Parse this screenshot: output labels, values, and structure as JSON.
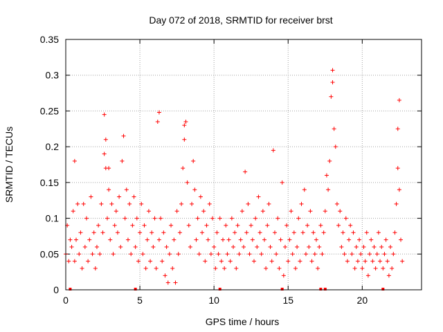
{
  "chart_data": {
    "type": "scatter",
    "title": "Day 072 of 2018, SRMTID for receiver brst",
    "xlabel": "GPS time / hours",
    "ylabel": "SRMTID / TECUs",
    "xlim": [
      0,
      24
    ],
    "ylim": [
      0,
      0.35
    ],
    "x_ticks": [
      0,
      5,
      10,
      15,
      20
    ],
    "x_tick_labels": [
      "0",
      "5",
      "10",
      "15",
      "20"
    ],
    "y_ticks": [
      0,
      0.05,
      0.1,
      0.15,
      0.2,
      0.25,
      0.3,
      0.35
    ],
    "y_tick_labels": [
      "0",
      "0.05",
      "0.1",
      "0.15",
      "0.2",
      "0.25",
      "0.3",
      "0.35"
    ],
    "grid": true,
    "marker": "+",
    "series": [
      {
        "name": "SRMTID",
        "color": "#ff0000",
        "points": [
          [
            0.0,
            0.05
          ],
          [
            0.1,
            0.09
          ],
          [
            0.2,
            0.04
          ],
          [
            0.3,
            0.07
          ],
          [
            0.4,
            0.06
          ],
          [
            0.5,
            0.11
          ],
          [
            0.6,
            0.04
          ],
          [
            0.6,
            0.18
          ],
          [
            0.7,
            0.07
          ],
          [
            0.8,
            0.12
          ],
          [
            0.9,
            0.05
          ],
          [
            1.0,
            0.08
          ],
          [
            1.1,
            0.03
          ],
          [
            1.2,
            0.12
          ],
          [
            1.3,
            0.06
          ],
          [
            1.4,
            0.1
          ],
          [
            1.5,
            0.04
          ],
          [
            1.6,
            0.07
          ],
          [
            1.7,
            0.13
          ],
          [
            1.8,
            0.05
          ],
          [
            1.9,
            0.08
          ],
          [
            2.0,
            0.03
          ],
          [
            2.1,
            0.06
          ],
          [
            2.2,
            0.09
          ],
          [
            2.3,
            0.05
          ],
          [
            2.4,
            0.12
          ],
          [
            2.5,
            0.08
          ],
          [
            2.6,
            0.19
          ],
          [
            2.6,
            0.245
          ],
          [
            2.7,
            0.17
          ],
          [
            2.7,
            0.21
          ],
          [
            2.8,
            0.1
          ],
          [
            2.9,
            0.14
          ],
          [
            2.9,
            0.17
          ],
          [
            3.0,
            0.07
          ],
          [
            3.1,
            0.12
          ],
          [
            3.2,
            0.05
          ],
          [
            3.3,
            0.09
          ],
          [
            3.4,
            0.11
          ],
          [
            3.5,
            0.08
          ],
          [
            3.6,
            0.13
          ],
          [
            3.7,
            0.06
          ],
          [
            3.8,
            0.18
          ],
          [
            3.9,
            0.215
          ],
          [
            4.0,
            0.1
          ],
          [
            4.1,
            0.14
          ],
          [
            4.2,
            0.07
          ],
          [
            4.3,
            0.12
          ],
          [
            4.4,
            0.05
          ],
          [
            4.5,
            0.09
          ],
          [
            4.6,
            0.13
          ],
          [
            4.7,
            0.06
          ],
          [
            4.8,
            0.1
          ],
          [
            4.9,
            0.04
          ],
          [
            5.0,
            0.08
          ],
          [
            5.1,
            0.12
          ],
          [
            5.2,
            0.05
          ],
          [
            5.3,
            0.09
          ],
          [
            5.4,
            0.03
          ],
          [
            5.5,
            0.07
          ],
          [
            5.6,
            0.11
          ],
          [
            5.7,
            0.04
          ],
          [
            5.8,
            0.08
          ],
          [
            5.9,
            0.06
          ],
          [
            6.0,
            0.1
          ],
          [
            6.1,
            0.03
          ],
          [
            6.2,
            0.235
          ],
          [
            6.3,
            0.248
          ],
          [
            6.3,
            0.07
          ],
          [
            6.4,
            0.1
          ],
          [
            6.5,
            0.04
          ],
          [
            6.6,
            0.08
          ],
          [
            6.7,
            0.02
          ],
          [
            6.8,
            0.06
          ],
          [
            6.9,
            0.01
          ],
          [
            7.0,
            0.05
          ],
          [
            7.1,
            0.09
          ],
          [
            7.2,
            0.03
          ],
          [
            7.3,
            0.07
          ],
          [
            7.4,
            0.01
          ],
          [
            7.5,
            0.11
          ],
          [
            7.6,
            0.05
          ],
          [
            7.7,
            0.08
          ],
          [
            7.8,
            0.12
          ],
          [
            7.9,
            0.17
          ],
          [
            8.0,
            0.21
          ],
          [
            8.0,
            0.23
          ],
          [
            8.1,
            0.235
          ],
          [
            8.2,
            0.15
          ],
          [
            8.3,
            0.09
          ],
          [
            8.4,
            0.06
          ],
          [
            8.5,
            0.12
          ],
          [
            8.6,
            0.18
          ],
          [
            8.7,
            0.14
          ],
          [
            8.8,
            0.07
          ],
          [
            8.9,
            0.1
          ],
          [
            9.0,
            0.05
          ],
          [
            9.1,
            0.13
          ],
          [
            9.2,
            0.08
          ],
          [
            9.3,
            0.11
          ],
          [
            9.4,
            0.04
          ],
          [
            9.5,
            0.09
          ],
          [
            9.6,
            0.07
          ],
          [
            9.7,
            0.12
          ],
          [
            9.8,
            0.05
          ],
          [
            9.9,
            0.1
          ],
          [
            10.0,
            0.06
          ],
          [
            10.1,
            0.03
          ],
          [
            10.2,
            0.08
          ],
          [
            10.3,
            0.05
          ],
          [
            10.4,
            0.1
          ],
          [
            10.5,
            0.04
          ],
          [
            10.6,
            0.07
          ],
          [
            10.7,
            0.03
          ],
          [
            10.8,
            0.09
          ],
          [
            10.9,
            0.05
          ],
          [
            11.0,
            0.07
          ],
          [
            11.1,
            0.04
          ],
          [
            11.2,
            0.1
          ],
          [
            11.3,
            0.06
          ],
          [
            11.4,
            0.08
          ],
          [
            11.5,
            0.03
          ],
          [
            11.6,
            0.09
          ],
          [
            11.7,
            0.05
          ],
          [
            11.8,
            0.07
          ],
          [
            11.9,
            0.11
          ],
          [
            12.0,
            0.06
          ],
          [
            12.1,
            0.165
          ],
          [
            12.2,
            0.08
          ],
          [
            12.3,
            0.12
          ],
          [
            12.4,
            0.05
          ],
          [
            12.5,
            0.09
          ],
          [
            12.6,
            0.07
          ],
          [
            12.7,
            0.04
          ],
          [
            12.8,
            0.1
          ],
          [
            12.9,
            0.06
          ],
          [
            13.0,
            0.13
          ],
          [
            13.1,
            0.08
          ],
          [
            13.2,
            0.05
          ],
          [
            13.3,
            0.11
          ],
          [
            13.4,
            0.07
          ],
          [
            13.5,
            0.03
          ],
          [
            13.6,
            0.09
          ],
          [
            13.7,
            0.12
          ],
          [
            13.8,
            0.06
          ],
          [
            13.9,
            0.04
          ],
          [
            14.0,
            0.195
          ],
          [
            14.1,
            0.08
          ],
          [
            14.2,
            0.05
          ],
          [
            14.3,
            0.1
          ],
          [
            14.4,
            0.03
          ],
          [
            14.5,
            0.07
          ],
          [
            14.6,
            0.15
          ],
          [
            14.7,
            0.02
          ],
          [
            14.8,
            0.06
          ],
          [
            14.9,
            0.09
          ],
          [
            15.0,
            0.04
          ],
          [
            15.1,
            0.07
          ],
          [
            15.2,
            0.11
          ],
          [
            15.3,
            0.05
          ],
          [
            15.4,
            0.08
          ],
          [
            15.5,
            0.03
          ],
          [
            15.6,
            0.06
          ],
          [
            15.7,
            0.1
          ],
          [
            15.8,
            0.04
          ],
          [
            15.9,
            0.12
          ],
          [
            16.0,
            0.08
          ],
          [
            16.1,
            0.14
          ],
          [
            16.2,
            0.05
          ],
          [
            16.3,
            0.09
          ],
          [
            16.4,
            0.06
          ],
          [
            16.5,
            0.11
          ],
          [
            16.6,
            0.04
          ],
          [
            16.7,
            0.08
          ],
          [
            16.8,
            0.05
          ],
          [
            16.9,
            0.07
          ],
          [
            17.0,
            0.03
          ],
          [
            17.1,
            0.06
          ],
          [
            17.2,
            0.09
          ],
          [
            17.3,
            0.05
          ],
          [
            17.4,
            0.08
          ],
          [
            17.5,
            0.11
          ],
          [
            17.6,
            0.16
          ],
          [
            17.7,
            0.14
          ],
          [
            17.8,
            0.18
          ],
          [
            17.9,
            0.27
          ],
          [
            18.0,
            0.307
          ],
          [
            18.0,
            0.29
          ],
          [
            18.1,
            0.225
          ],
          [
            18.2,
            0.2
          ],
          [
            18.3,
            0.12
          ],
          [
            18.4,
            0.09
          ],
          [
            18.5,
            0.11
          ],
          [
            18.6,
            0.06
          ],
          [
            18.7,
            0.08
          ],
          [
            18.8,
            0.05
          ],
          [
            18.9,
            0.1
          ],
          [
            19.0,
            0.04
          ],
          [
            19.1,
            0.07
          ],
          [
            19.2,
            0.09
          ],
          [
            19.3,
            0.05
          ],
          [
            19.4,
            0.08
          ],
          [
            19.5,
            0.03
          ],
          [
            19.6,
            0.06
          ],
          [
            19.7,
            0.04
          ],
          [
            19.8,
            0.07
          ],
          [
            19.9,
            0.05
          ],
          [
            20.0,
            0.03
          ],
          [
            20.1,
            0.06
          ],
          [
            20.2,
            0.04
          ],
          [
            20.3,
            0.08
          ],
          [
            20.4,
            0.02
          ],
          [
            20.5,
            0.05
          ],
          [
            20.6,
            0.07
          ],
          [
            20.7,
            0.04
          ],
          [
            20.8,
            0.06
          ],
          [
            20.9,
            0.03
          ],
          [
            21.0,
            0.05
          ],
          [
            21.1,
            0.08
          ],
          [
            21.2,
            0.04
          ],
          [
            21.3,
            0.06
          ],
          [
            21.4,
            0.03
          ],
          [
            21.5,
            0.05
          ],
          [
            21.6,
            0.07
          ],
          [
            21.7,
            0.04
          ],
          [
            21.8,
            0.02
          ],
          [
            21.9,
            0.06
          ],
          [
            22.0,
            0.03
          ],
          [
            22.1,
            0.05
          ],
          [
            22.2,
            0.08
          ],
          [
            22.3,
            0.12
          ],
          [
            22.4,
            0.17
          ],
          [
            22.4,
            0.225
          ],
          [
            22.5,
            0.265
          ],
          [
            22.5,
            0.14
          ],
          [
            22.6,
            0.07
          ],
          [
            22.7,
            0.04
          ]
        ]
      }
    ],
    "gap_markers_x": [
      0.3,
      4.7,
      10.4,
      14.6,
      17.2,
      17.5,
      21.4
    ]
  }
}
